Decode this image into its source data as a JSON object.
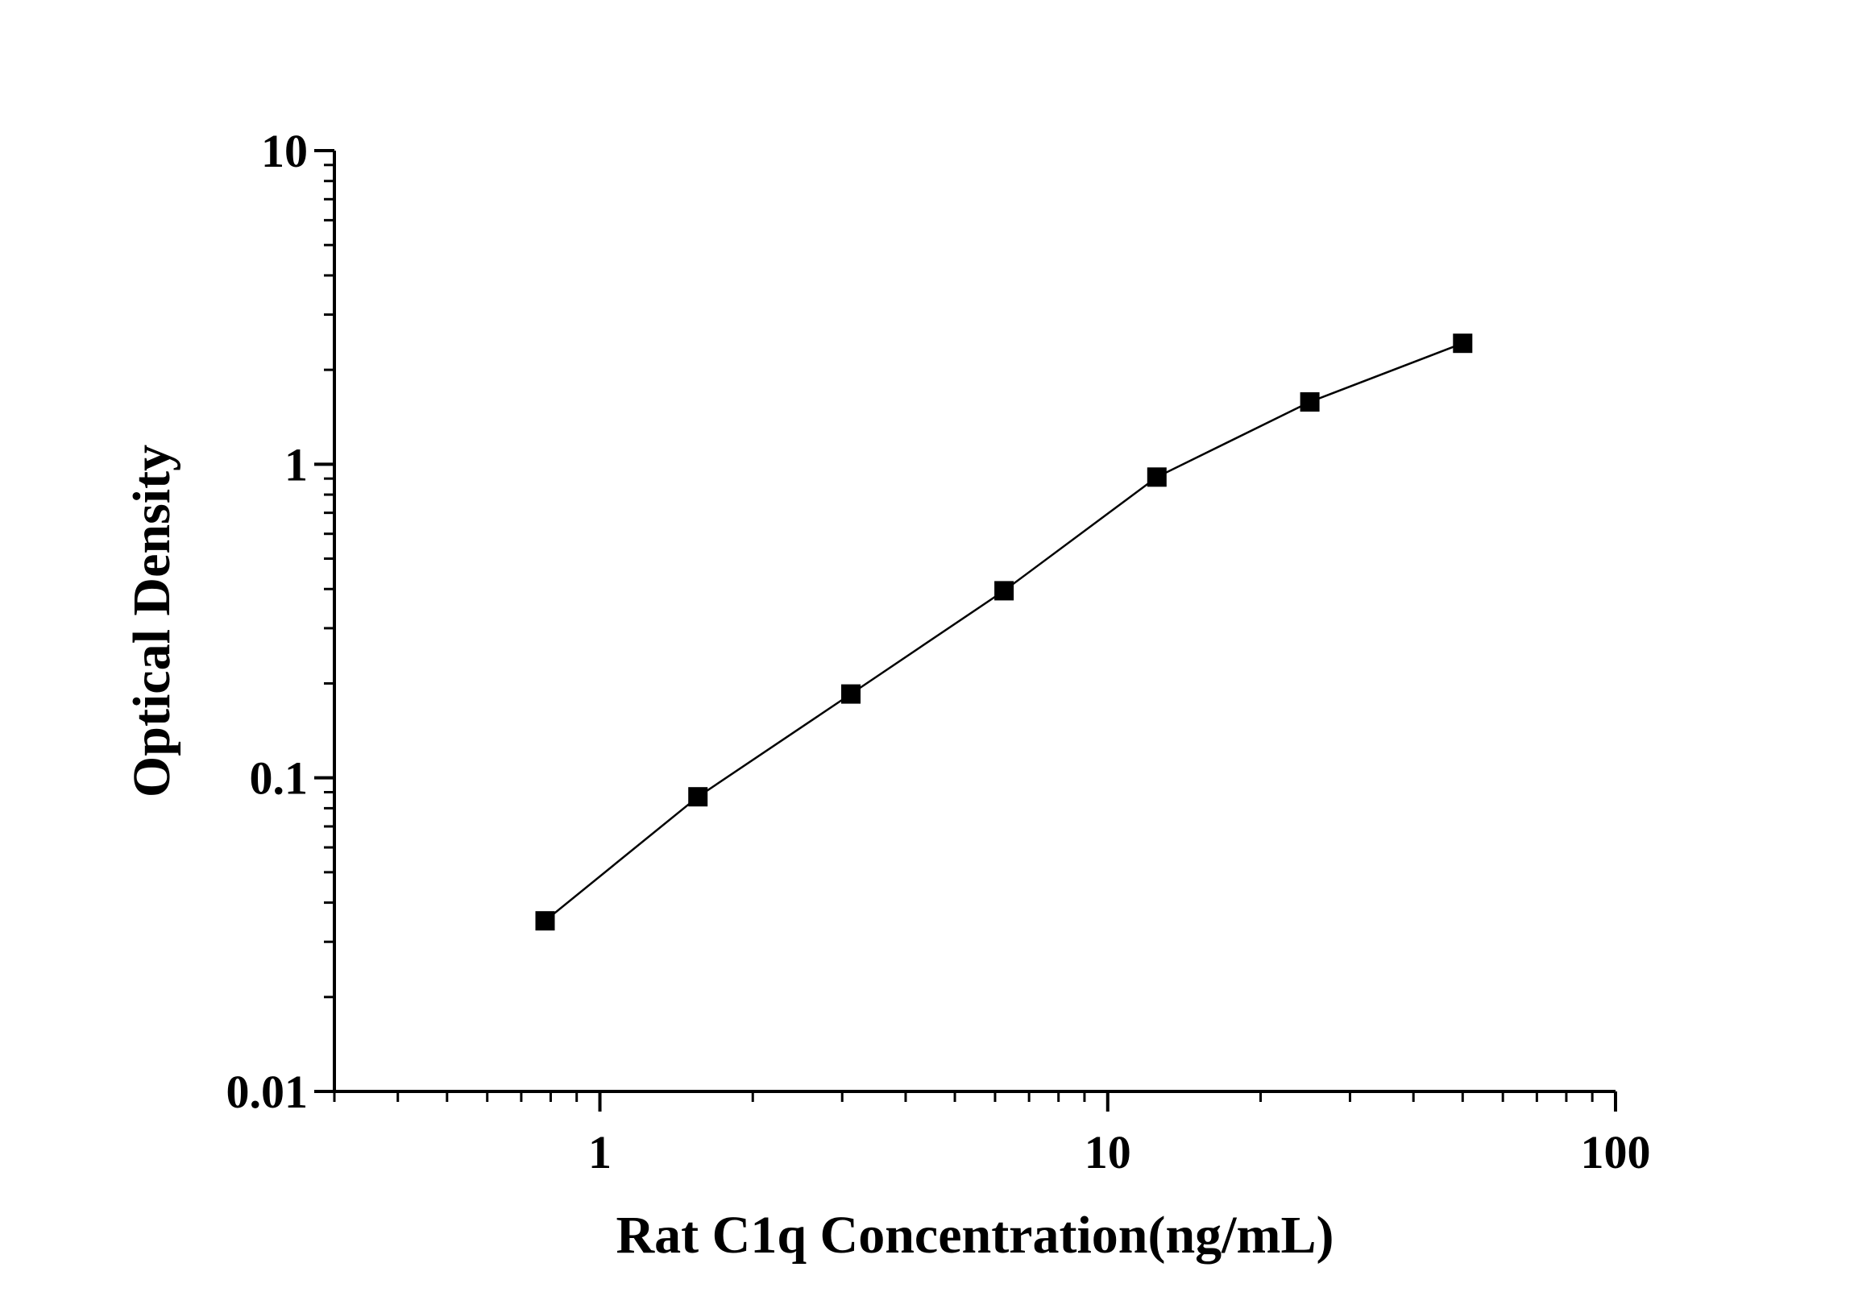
{
  "chart_data": {
    "type": "line",
    "title": "",
    "xlabel": "Rat C1q Concentration(ng/mL)",
    "ylabel": "Optical Density",
    "xscale": "log",
    "yscale": "log",
    "xlim": [
      0.3,
      100
    ],
    "ylim": [
      0.01,
      10
    ],
    "x_ticks": [
      "1",
      "10",
      "100"
    ],
    "y_ticks": [
      "10",
      "1",
      "0.1",
      "0.01"
    ],
    "grid": false,
    "legend": "none",
    "series": [
      {
        "marker": "square",
        "color": "#000000",
        "x": [
          0.78,
          1.56,
          3.12,
          6.25,
          12.5,
          25,
          50
        ],
        "y": [
          0.035,
          0.087,
          0.185,
          0.395,
          0.91,
          1.58,
          2.43
        ]
      }
    ]
  }
}
